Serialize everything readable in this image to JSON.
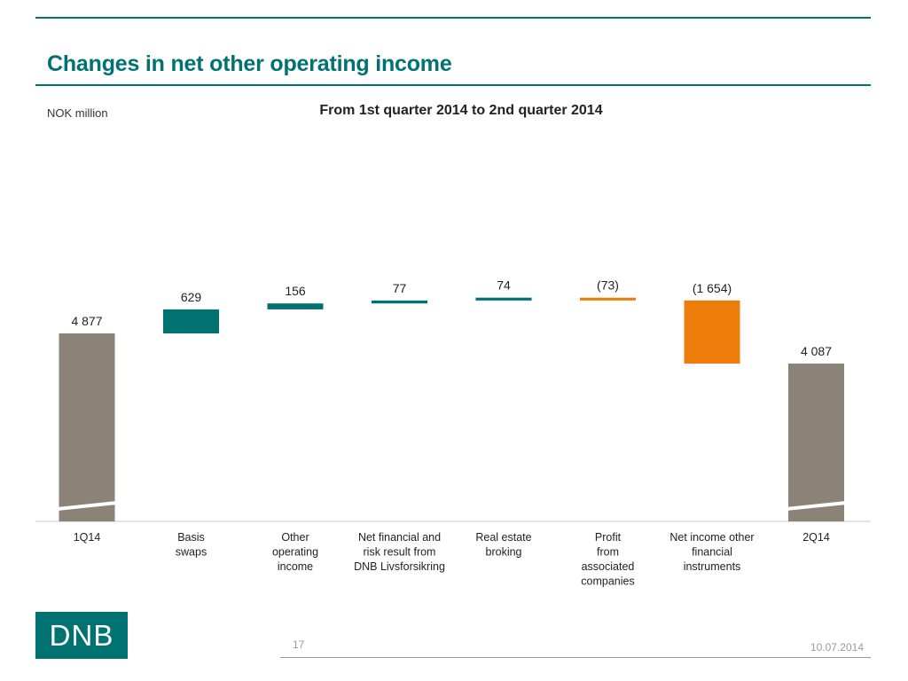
{
  "header": {
    "title": "Changes in net other operating income",
    "unit_label": "NOK million"
  },
  "colors": {
    "brand": "#007272",
    "total": "#8b8378",
    "negative": "#ed7d0a",
    "axis": "#c8c8c8"
  },
  "chart_data": {
    "type": "bar",
    "subtype": "waterfall",
    "title": "From 1st quarter 2014 to 2nd quarter 2014",
    "unit": "NOK million",
    "xlabel": "",
    "ylabel": "",
    "grid": false,
    "legend": "none",
    "axis_break_on_totals": true,
    "categories": [
      "1Q14",
      "Basis swaps",
      "Other operating income",
      "Net financial and risk result from DNB Livsforsikring",
      "Real estate broking",
      "Profit from associated companies",
      "Net income other financial instruments",
      "2Q14"
    ],
    "category_lines": [
      [
        "1Q14"
      ],
      [
        "Basis",
        "swaps"
      ],
      [
        "Other",
        "operating",
        "income"
      ],
      [
        "Net financial and",
        "risk result from",
        "DNB Livsforsikring"
      ],
      [
        "Real estate",
        "broking"
      ],
      [
        "Profit",
        "from",
        "associated",
        "companies"
      ],
      [
        "Net income other",
        "financial",
        "instruments"
      ],
      [
        "2Q14"
      ]
    ],
    "values": [
      4877,
      629,
      156,
      77,
      74,
      -73,
      -1654,
      4087
    ],
    "data_labels": [
      "4 877",
      "629",
      "156",
      "77",
      "74",
      "(73)",
      "(1 654)",
      "4 087"
    ],
    "kinds": [
      "total",
      "delta",
      "delta",
      "delta",
      "delta",
      "delta",
      "delta",
      "total"
    ]
  },
  "footer": {
    "page_number": "17",
    "date": "10.07.2014",
    "logo_text": "DNB"
  }
}
